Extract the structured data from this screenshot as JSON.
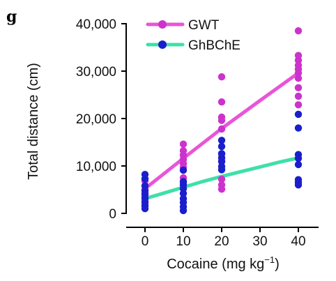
{
  "panel_label": "g",
  "chart_data": {
    "type": "scatter",
    "title": "",
    "xlabel_main": "Cocaine (mg kg",
    "xlabel_sup": "−1",
    "xlabel_close": ")",
    "ylabel": "Total distance (cm)",
    "xlim": [
      -3,
      45
    ],
    "ylim": [
      0,
      40000
    ],
    "x_ticks": [
      0,
      10,
      20,
      30,
      40
    ],
    "x_tick_labels": [
      "0",
      "10",
      "20",
      "30",
      "40"
    ],
    "y_ticks": [
      0,
      10000,
      20000,
      30000,
      40000
    ],
    "y_tick_labels": [
      "0",
      "10,000",
      "20,000",
      "30,000",
      "40,000"
    ],
    "grid": false,
    "legend_position": "top-left",
    "series": [
      {
        "name": "GWT",
        "color": "#cc33cc",
        "line_color": "#e855d8",
        "points": [
          {
            "x": 0,
            "y": 6800
          },
          {
            "x": 0,
            "y": 5800
          },
          {
            "x": 0,
            "y": 5000
          },
          {
            "x": 0,
            "y": 4300
          },
          {
            "x": 0,
            "y": 3500
          },
          {
            "x": 0,
            "y": 2700
          },
          {
            "x": 0,
            "y": 2200
          },
          {
            "x": 0,
            "y": 1700
          },
          {
            "x": 10,
            "y": 14600
          },
          {
            "x": 10,
            "y": 13200
          },
          {
            "x": 10,
            "y": 12300
          },
          {
            "x": 10,
            "y": 11400
          },
          {
            "x": 10,
            "y": 10500
          },
          {
            "x": 10,
            "y": 9700
          },
          {
            "x": 10,
            "y": 7500
          },
          {
            "x": 10,
            "y": 6400
          },
          {
            "x": 20,
            "y": 28800
          },
          {
            "x": 20,
            "y": 23500
          },
          {
            "x": 20,
            "y": 20300
          },
          {
            "x": 20,
            "y": 19600
          },
          {
            "x": 20,
            "y": 17800
          },
          {
            "x": 20,
            "y": 12500
          },
          {
            "x": 20,
            "y": 10900
          },
          {
            "x": 20,
            "y": 7200
          },
          {
            "x": 20,
            "y": 6000
          },
          {
            "x": 20,
            "y": 5100
          },
          {
            "x": 40,
            "y": 38500
          },
          {
            "x": 40,
            "y": 33300
          },
          {
            "x": 40,
            "y": 32300
          },
          {
            "x": 40,
            "y": 31200
          },
          {
            "x": 40,
            "y": 30400
          },
          {
            "x": 40,
            "y": 29600
          },
          {
            "x": 40,
            "y": 28500
          },
          {
            "x": 40,
            "y": 26500
          },
          {
            "x": 40,
            "y": 24700
          },
          {
            "x": 40,
            "y": 22900
          }
        ],
        "fit": [
          {
            "x": 0,
            "y": 5200
          },
          {
            "x": 10,
            "y": 11600
          },
          {
            "x": 20,
            "y": 17900
          },
          {
            "x": 30,
            "y": 23800
          },
          {
            "x": 40,
            "y": 29600
          }
        ]
      },
      {
        "name": "GhBChE",
        "color": "#1a1fcc",
        "line_color": "#3ee0a8",
        "points": [
          {
            "x": 0,
            "y": 8200
          },
          {
            "x": 0,
            "y": 7300
          },
          {
            "x": 0,
            "y": 5800
          },
          {
            "x": 0,
            "y": 4800
          },
          {
            "x": 0,
            "y": 4000
          },
          {
            "x": 0,
            "y": 3200
          },
          {
            "x": 0,
            "y": 2400
          },
          {
            "x": 0,
            "y": 1600
          },
          {
            "x": 0,
            "y": 1000
          },
          {
            "x": 10,
            "y": 9100
          },
          {
            "x": 10,
            "y": 6700
          },
          {
            "x": 10,
            "y": 6000
          },
          {
            "x": 10,
            "y": 5200
          },
          {
            "x": 10,
            "y": 4200
          },
          {
            "x": 10,
            "y": 3100
          },
          {
            "x": 10,
            "y": 2300
          },
          {
            "x": 10,
            "y": 1400
          },
          {
            "x": 10,
            "y": 600
          },
          {
            "x": 20,
            "y": 15400
          },
          {
            "x": 20,
            "y": 14100
          },
          {
            "x": 20,
            "y": 12600
          },
          {
            "x": 20,
            "y": 11700
          },
          {
            "x": 20,
            "y": 11000
          },
          {
            "x": 20,
            "y": 9900
          },
          {
            "x": 20,
            "y": 9200
          },
          {
            "x": 40,
            "y": 20900
          },
          {
            "x": 40,
            "y": 18000
          },
          {
            "x": 40,
            "y": 12400
          },
          {
            "x": 40,
            "y": 11600
          },
          {
            "x": 40,
            "y": 10300
          },
          {
            "x": 40,
            "y": 7100
          },
          {
            "x": 40,
            "y": 6500
          },
          {
            "x": 40,
            "y": 6000
          }
        ],
        "fit": [
          {
            "x": 0,
            "y": 3100
          },
          {
            "x": 5,
            "y": 4300
          },
          {
            "x": 10,
            "y": 5500
          },
          {
            "x": 15,
            "y": 6700
          },
          {
            "x": 20,
            "y": 7800
          },
          {
            "x": 25,
            "y": 8800
          },
          {
            "x": 30,
            "y": 9800
          },
          {
            "x": 35,
            "y": 10800
          },
          {
            "x": 40,
            "y": 11700
          }
        ]
      }
    ]
  }
}
